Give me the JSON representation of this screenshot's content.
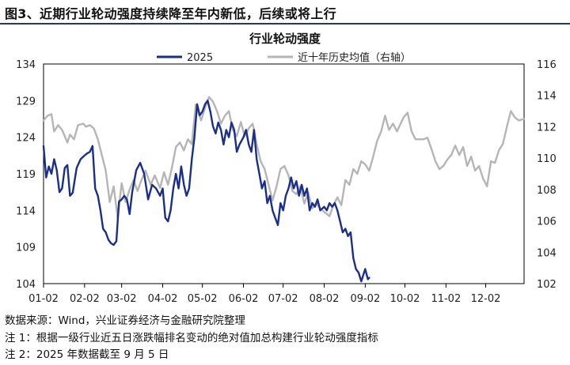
{
  "figure": {
    "title": "图3、近期行业轮动强度持续降至年内新低，后续或将上行",
    "notes": [
      "数据来源：Wind，兴业证券经济与金融研究院整理",
      "注 1：根据一级行业近五日涨跌幅排名变动的绝对值加总构建行业轮动强度指标",
      "注 2：2025 年数据截至 9 月 5 日"
    ]
  },
  "colors": {
    "series_2025": "#1a2f8c",
    "series_avg": "#b5b5b5",
    "title_rule": "#1f3a6e",
    "axis": "#000000"
  },
  "chart_data": {
    "type": "line",
    "title": "行业轮动强度",
    "x_ticks": [
      "01-02",
      "02-02",
      "03-02",
      "04-02",
      "05-02",
      "06-02",
      "07-02",
      "08-02",
      "09-02",
      "10-02",
      "11-02",
      "12-02"
    ],
    "x_range": [
      "01-02",
      "12-31"
    ],
    "y_left": {
      "range": [
        104,
        134
      ],
      "ticks": [
        104,
        109,
        114,
        119,
        124,
        129,
        134
      ]
    },
    "y_right": {
      "range": [
        102,
        116
      ],
      "ticks": [
        102,
        104,
        106,
        108,
        110,
        112,
        114,
        116
      ]
    },
    "legend_position": "top-center",
    "series": [
      {
        "name": "2025",
        "axis": "left",
        "points": [
          [
            "01-02",
            122.8
          ],
          [
            "01-04",
            118.5
          ],
          [
            "01-06",
            120.0
          ],
          [
            "01-08",
            119.0
          ],
          [
            "01-10",
            121.0
          ],
          [
            "01-12",
            119.5
          ],
          [
            "01-14",
            116.5
          ],
          [
            "01-16",
            117.0
          ],
          [
            "01-18",
            119.8
          ],
          [
            "01-20",
            120.2
          ],
          [
            "01-22",
            116.0
          ],
          [
            "01-24",
            116.4
          ],
          [
            "01-27",
            119.8
          ],
          [
            "01-30",
            121.0
          ],
          [
            "02-02",
            121.5
          ],
          [
            "02-04",
            121.8
          ],
          [
            "02-06",
            122.0
          ],
          [
            "02-08",
            122.8
          ],
          [
            "02-10",
            117.0
          ],
          [
            "02-12",
            116.0
          ],
          [
            "02-14",
            114.0
          ],
          [
            "02-16",
            111.5
          ],
          [
            "02-18",
            111.0
          ],
          [
            "02-20",
            110.0
          ],
          [
            "02-22",
            109.5
          ],
          [
            "02-24",
            109.3
          ],
          [
            "02-26",
            109.8
          ],
          [
            "02-28",
            115.2
          ],
          [
            "03-02",
            115.5
          ],
          [
            "03-04",
            116.0
          ],
          [
            "03-06",
            115.5
          ],
          [
            "03-08",
            113.5
          ],
          [
            "03-10",
            116.5
          ],
          [
            "03-13",
            119.5
          ],
          [
            "03-16",
            120.5
          ],
          [
            "03-19",
            119.0
          ],
          [
            "03-22",
            115.5
          ],
          [
            "03-25",
            117.5
          ],
          [
            "03-28",
            117.0
          ],
          [
            "03-31",
            116.0
          ],
          [
            "04-02",
            117.0
          ],
          [
            "04-04",
            113.0
          ],
          [
            "04-06",
            112.5
          ],
          [
            "04-08",
            114.0
          ],
          [
            "04-10",
            117.0
          ],
          [
            "04-12",
            119.0
          ],
          [
            "04-14",
            117.0
          ],
          [
            "04-16",
            120.0
          ],
          [
            "04-18",
            117.5
          ],
          [
            "04-20",
            116.0
          ],
          [
            "04-22",
            117.0
          ],
          [
            "04-24",
            121.0
          ],
          [
            "04-26",
            124.0
          ],
          [
            "04-28",
            128.5
          ],
          [
            "04-30",
            127.0
          ],
          [
            "05-02",
            127.5
          ],
          [
            "05-04",
            128.5
          ],
          [
            "05-06",
            129.0
          ],
          [
            "05-08",
            127.5
          ],
          [
            "05-10",
            125.5
          ],
          [
            "05-12",
            124.5
          ],
          [
            "05-14",
            126.0
          ],
          [
            "05-16",
            125.0
          ],
          [
            "05-18",
            123.0
          ],
          [
            "05-20",
            125.0
          ],
          [
            "05-22",
            124.0
          ],
          [
            "05-24",
            126.0
          ],
          [
            "05-26",
            125.0
          ],
          [
            "05-28",
            122.0
          ],
          [
            "05-30",
            123.0
          ],
          [
            "06-02",
            124.0
          ],
          [
            "06-04",
            125.0
          ],
          [
            "06-06",
            123.0
          ],
          [
            "06-08",
            122.0
          ],
          [
            "06-10",
            125.0
          ],
          [
            "06-12",
            121.0
          ],
          [
            "06-14",
            119.0
          ],
          [
            "06-16",
            117.0
          ],
          [
            "06-18",
            118.0
          ],
          [
            "06-20",
            115.0
          ],
          [
            "06-22",
            116.0
          ],
          [
            "06-24",
            114.0
          ],
          [
            "06-26",
            113.0
          ],
          [
            "06-28",
            112.0
          ],
          [
            "06-30",
            115.0
          ],
          [
            "07-02",
            114.0
          ],
          [
            "07-04",
            116.0
          ],
          [
            "07-06",
            117.0
          ],
          [
            "07-08",
            118.5
          ],
          [
            "07-10",
            117.0
          ],
          [
            "07-12",
            118.0
          ],
          [
            "07-14",
            116.0
          ],
          [
            "07-16",
            117.5
          ],
          [
            "07-18",
            116.0
          ],
          [
            "07-20",
            117.0
          ],
          [
            "07-22",
            114.0
          ],
          [
            "07-24",
            115.0
          ],
          [
            "07-26",
            114.5
          ],
          [
            "07-28",
            115.5
          ],
          [
            "07-30",
            114.0
          ],
          [
            "08-02",
            114.5
          ],
          [
            "08-04",
            114.0
          ],
          [
            "08-06",
            115.0
          ],
          [
            "08-08",
            114.5
          ],
          [
            "08-10",
            115.0
          ],
          [
            "08-12",
            114.0
          ],
          [
            "08-14",
            112.5
          ],
          [
            "08-16",
            111.0
          ],
          [
            "08-18",
            111.5
          ],
          [
            "08-20",
            110.5
          ],
          [
            "08-22",
            111.0
          ],
          [
            "08-24",
            107.5
          ],
          [
            "08-26",
            106.0
          ],
          [
            "08-28",
            105.5
          ],
          [
            "08-30",
            104.3
          ],
          [
            "09-02",
            106.0
          ],
          [
            "09-04",
            104.6
          ],
          [
            "09-05",
            104.8
          ]
        ]
      },
      {
        "name": "近十年历史均值（右轴）",
        "axis": "right",
        "points": [
          [
            "01-02",
            112.4
          ],
          [
            "01-05",
            112.7
          ],
          [
            "01-08",
            112.8
          ],
          [
            "01-10",
            111.7
          ],
          [
            "01-13",
            112.1
          ],
          [
            "01-16",
            111.8
          ],
          [
            "01-20",
            111.0
          ],
          [
            "01-22",
            111.5
          ],
          [
            "01-25",
            111.2
          ],
          [
            "01-28",
            112.1
          ],
          [
            "02-01",
            112.2
          ],
          [
            "02-03",
            112.0
          ],
          [
            "02-06",
            112.1
          ],
          [
            "02-09",
            111.9
          ],
          [
            "02-12",
            111.2
          ],
          [
            "02-15",
            110.2
          ],
          [
            "02-18",
            109.2
          ],
          [
            "02-21",
            107.2
          ],
          [
            "02-24",
            108.2
          ],
          [
            "02-27",
            106.2
          ],
          [
            "03-02",
            108.4
          ],
          [
            "03-05",
            107.2
          ],
          [
            "03-08",
            108.0
          ],
          [
            "03-11",
            108.6
          ],
          [
            "03-14",
            107.9
          ],
          [
            "03-17",
            108.6
          ],
          [
            "03-20",
            109.2
          ],
          [
            "03-24",
            108.3
          ],
          [
            "03-27",
            108.9
          ],
          [
            "03-31",
            108.1
          ],
          [
            "04-03",
            109.1
          ],
          [
            "04-06",
            108.3
          ],
          [
            "04-09",
            109.4
          ],
          [
            "04-12",
            110.7
          ],
          [
            "04-15",
            111.0
          ],
          [
            "04-18",
            110.5
          ],
          [
            "04-21",
            111.2
          ],
          [
            "04-24",
            110.9
          ],
          [
            "04-27",
            113.4
          ],
          [
            "05-01",
            112.4
          ],
          [
            "05-04",
            113.2
          ],
          [
            "05-07",
            113.9
          ],
          [
            "05-10",
            113.6
          ],
          [
            "05-13",
            113.0
          ],
          [
            "05-16",
            112.2
          ],
          [
            "05-19",
            112.7
          ],
          [
            "05-22",
            113.0
          ],
          [
            "05-25",
            111.8
          ],
          [
            "05-28",
            111.4
          ],
          [
            "05-31",
            112.3
          ],
          [
            "06-03",
            111.4
          ],
          [
            "06-06",
            111.9
          ],
          [
            "06-09",
            112.2
          ],
          [
            "06-12",
            110.9
          ],
          [
            "06-15",
            109.8
          ],
          [
            "06-18",
            109.3
          ],
          [
            "06-21",
            108.3
          ],
          [
            "06-24",
            107.3
          ],
          [
            "06-27",
            108.2
          ],
          [
            "06-30",
            109.3
          ],
          [
            "07-03",
            109.5
          ],
          [
            "07-06",
            108.9
          ],
          [
            "07-09",
            107.9
          ],
          [
            "07-12",
            107.7
          ],
          [
            "07-15",
            108.2
          ],
          [
            "07-18",
            107.1
          ],
          [
            "07-21",
            107.8
          ],
          [
            "07-24",
            106.8
          ],
          [
            "07-27",
            107.1
          ],
          [
            "07-30",
            106.8
          ],
          [
            "08-03",
            106.5
          ],
          [
            "08-06",
            106.3
          ],
          [
            "08-09",
            107.0
          ],
          [
            "08-12",
            107.5
          ],
          [
            "08-15",
            107.0
          ],
          [
            "08-18",
            108.6
          ],
          [
            "08-21",
            108.3
          ],
          [
            "08-24",
            109.3
          ],
          [
            "08-27",
            109.0
          ],
          [
            "08-30",
            109.8
          ],
          [
            "09-02",
            109.6
          ],
          [
            "09-05",
            109.2
          ],
          [
            "09-08",
            110.1
          ],
          [
            "09-11",
            111.1
          ],
          [
            "09-14",
            111.7
          ],
          [
            "09-17",
            112.7
          ],
          [
            "09-20",
            111.8
          ],
          [
            "09-23",
            112.2
          ],
          [
            "09-26",
            111.7
          ],
          [
            "10-01",
            112.6
          ],
          [
            "10-04",
            112.9
          ],
          [
            "10-07",
            111.7
          ],
          [
            "10-10",
            111.2
          ],
          [
            "10-13",
            111.2
          ],
          [
            "10-16",
            111.2
          ],
          [
            "10-19",
            111.3
          ],
          [
            "10-22",
            110.6
          ],
          [
            "10-25",
            109.8
          ],
          [
            "10-28",
            109.3
          ],
          [
            "10-31",
            109.5
          ],
          [
            "11-03",
            109.9
          ],
          [
            "11-06",
            110.2
          ],
          [
            "11-09",
            110.8
          ],
          [
            "11-12",
            110.2
          ],
          [
            "11-15",
            110.7
          ],
          [
            "11-18",
            109.5
          ],
          [
            "11-21",
            110.1
          ],
          [
            "11-24",
            109.2
          ],
          [
            "11-27",
            109.5
          ],
          [
            "11-30",
            108.7
          ],
          [
            "12-03",
            108.2
          ],
          [
            "12-06",
            109.8
          ],
          [
            "12-09",
            109.7
          ],
          [
            "12-12",
            110.5
          ],
          [
            "12-15",
            110.9
          ],
          [
            "12-18",
            112.0
          ],
          [
            "12-21",
            113.0
          ],
          [
            "12-24",
            112.6
          ],
          [
            "12-27",
            112.4
          ],
          [
            "12-31",
            112.5
          ]
        ]
      }
    ]
  }
}
